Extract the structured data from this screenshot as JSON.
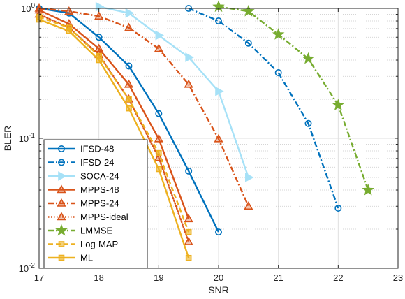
{
  "chart_data": {
    "type": "line",
    "xlabel": "SNR",
    "ylabel": "BLER",
    "xlim": [
      17,
      23
    ],
    "ylim": [
      0.01,
      1
    ],
    "yscale": "log",
    "grid": true,
    "legend_position": "bottom-left",
    "x_ticks": [
      "17",
      "18",
      "19",
      "20",
      "21",
      "22",
      "23"
    ],
    "y_ticks": [
      {
        "base": "10",
        "exp": "0",
        "value": 1
      },
      {
        "base": "10",
        "exp": "-1",
        "value": 0.1
      },
      {
        "base": "10",
        "exp": "-2",
        "value": 0.01
      }
    ],
    "series": [
      {
        "name": "IFSD-48",
        "color": "#0072BD",
        "dash": "solid",
        "marker": "circle",
        "x": [
          17,
          17.5,
          18,
          18.5,
          19,
          19.5,
          20
        ],
        "y": [
          1.0,
          0.92,
          0.6,
          0.36,
          0.155,
          0.056,
          0.019
        ]
      },
      {
        "name": "IFSD-24",
        "color": "#0072BD",
        "dash": "dashdot",
        "marker": "circle",
        "x": [
          19.5,
          20,
          20.5,
          21,
          21.5,
          22
        ],
        "y": [
          1.0,
          0.8,
          0.54,
          0.32,
          0.13,
          0.029
        ]
      },
      {
        "name": "SOCA-24",
        "color": "#A6E1F7",
        "dash": "solid",
        "marker": "triangle-right",
        "x": [
          18,
          18.5,
          19,
          19.5,
          20,
          20.5
        ],
        "y": [
          1.03,
          0.92,
          0.62,
          0.42,
          0.23,
          0.05
        ]
      },
      {
        "name": "MPPS-48",
        "color": "#D95319",
        "dash": "solid",
        "marker": "triangle-up",
        "x": [
          17,
          17.5,
          18,
          18.5,
          19,
          19.5
        ],
        "y": [
          0.97,
          0.76,
          0.49,
          0.26,
          0.099,
          0.024
        ]
      },
      {
        "name": "MPPS-24",
        "color": "#D95319",
        "dash": "dashdot",
        "marker": "triangle-up",
        "x": [
          17,
          17.5,
          18,
          18.5,
          19,
          19.5,
          20,
          20.5
        ],
        "y": [
          1.0,
          0.95,
          0.87,
          0.71,
          0.49,
          0.26,
          0.099,
          0.03
        ]
      },
      {
        "name": "MPPS-ideal",
        "color": "#D95319",
        "dash": "dotted",
        "marker": "triangle-up",
        "x": [
          17,
          17.5,
          18,
          18.5,
          19,
          19.5
        ],
        "y": [
          0.9,
          0.71,
          0.44,
          0.2,
          0.071,
          0.016
        ]
      },
      {
        "name": "LMMSE",
        "color": "#77AC30",
        "dash": "dashdot",
        "marker": "star",
        "x": [
          20,
          20.5,
          21,
          21.5,
          22,
          22.5
        ],
        "y": [
          1.03,
          0.95,
          0.63,
          0.41,
          0.18,
          0.04
        ]
      },
      {
        "name": "Log-MAP",
        "color": "#EDB120",
        "dash": "dashed",
        "marker": "square",
        "x": [
          17,
          17.5,
          18,
          18.5,
          19,
          19.5
        ],
        "y": [
          0.86,
          0.71,
          0.43,
          0.2,
          0.077,
          0.019
        ]
      },
      {
        "name": "ML",
        "color": "#EDB120",
        "dash": "solid",
        "marker": "square",
        "x": [
          17,
          17.5,
          18,
          18.5,
          19,
          19.5
        ],
        "y": [
          0.82,
          0.67,
          0.4,
          0.17,
          0.058,
          0.012
        ]
      }
    ]
  }
}
